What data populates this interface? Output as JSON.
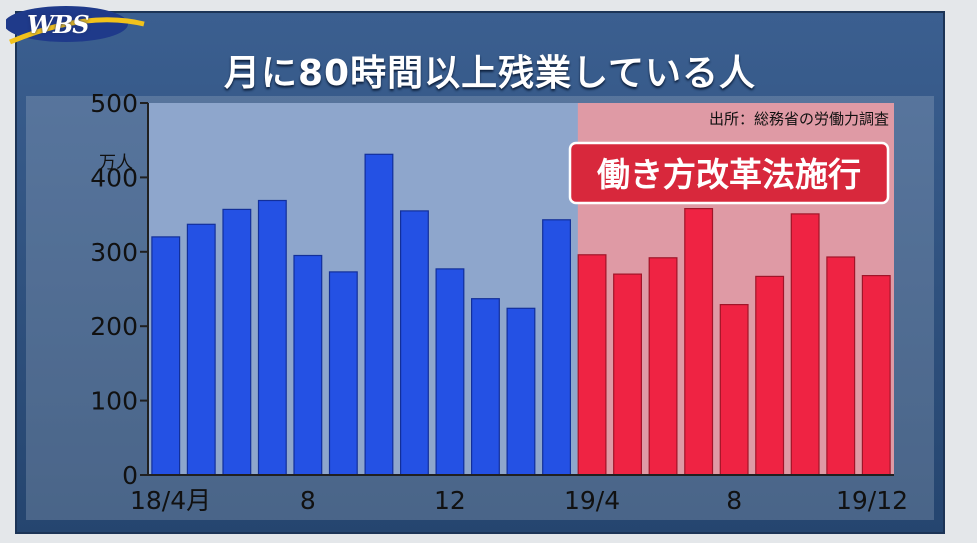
{
  "logo": "WBS",
  "title": "月に80時間以上残業している人",
  "source": "出所：総務省の労働力調査",
  "annotation": "働き方改革法施行",
  "colors": {
    "panel": "#2c4f7e",
    "plot_bg": "#8ea6cc",
    "shaded_bg": "#df9aa5",
    "bar_before": "#2451e4",
    "bar_after": "#ef2343",
    "accent_line": "#e9653e",
    "annotation_bg": "#d8283c"
  },
  "chart_data": {
    "type": "bar",
    "categories": [
      "18/4",
      "18/5",
      "18/6",
      "18/7",
      "18/8",
      "18/9",
      "18/10",
      "18/11",
      "18/12",
      "19/1",
      "19/2",
      "19/3",
      "19/4",
      "19/5",
      "19/6",
      "19/7",
      "19/8",
      "19/9",
      "19/10",
      "19/11",
      "19/12"
    ],
    "values": [
      320,
      337,
      357,
      369,
      295,
      273,
      431,
      355,
      277,
      237,
      224,
      343,
      296,
      270,
      292,
      358,
      229,
      267,
      351,
      293,
      268
    ],
    "period_split_index": 12,
    "ylim": [
      0,
      500
    ],
    "yticks": [
      0,
      100,
      200,
      300,
      400,
      500
    ],
    "yunit": "万人",
    "xtick_labels": [
      {
        "index": 0,
        "text": "18/4月"
      },
      {
        "index": 4,
        "text": "8"
      },
      {
        "index": 8,
        "text": "12"
      },
      {
        "index": 12,
        "text": "19/4"
      },
      {
        "index": 16,
        "text": "8"
      },
      {
        "index": 20,
        "text": "19/12"
      }
    ],
    "grid": false
  }
}
